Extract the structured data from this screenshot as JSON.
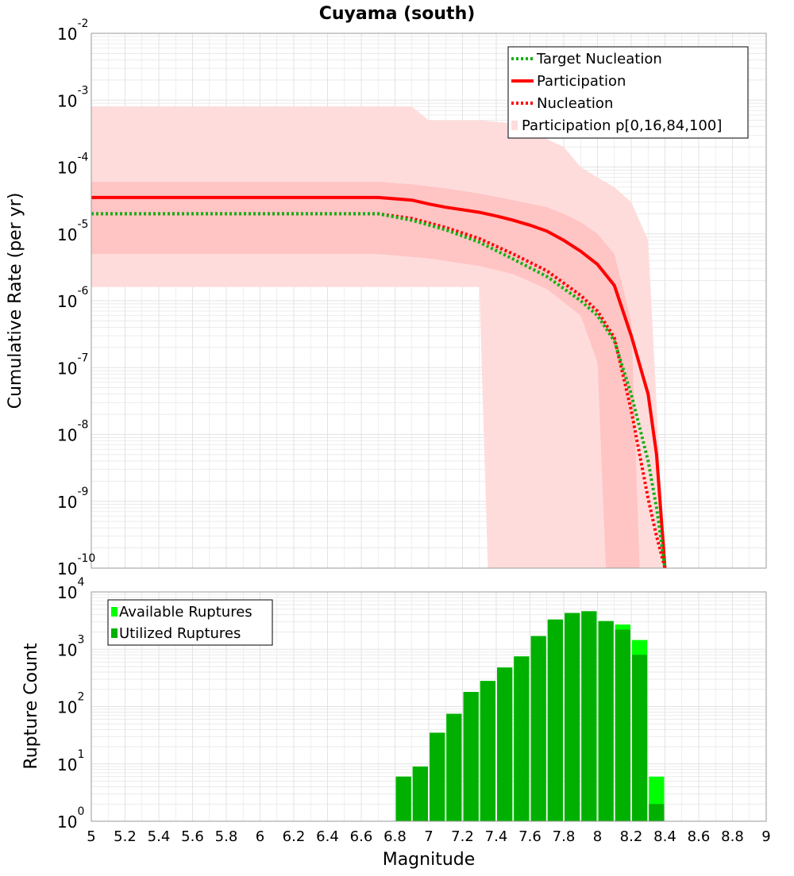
{
  "title": "Cuyama (south)",
  "colors": {
    "band_outer": "#ffdcdc",
    "band_inner": "#ffc4c4",
    "participation": "#ff0000",
    "nucleation": "#ff0000",
    "target": "#13b013",
    "available": "#00ff00",
    "utilized": "#00b000",
    "grid": "#e3e3e3"
  },
  "chart_data": [
    {
      "type": "line",
      "ylabel": "Cumulative Rate (per yr)",
      "yscale": "log",
      "xlim": [
        5,
        9
      ],
      "ylim_exp": [
        -10,
        -2
      ],
      "y_tick_exponents": [
        -10,
        -9,
        -8,
        -7,
        -6,
        -5,
        -4,
        -3,
        -2
      ],
      "grid": true,
      "legend": {
        "position": "top-right",
        "entries": [
          "Target Nucleation",
          "Participation",
          "Nucleation",
          "Participation p[0,16,84,100]"
        ]
      },
      "series": [
        {
          "name": "Target Nucleation",
          "style": "dotted",
          "x": [
            5.0,
            6.7,
            6.9,
            7.1,
            7.3,
            7.5,
            7.7,
            7.9,
            8.0,
            8.1,
            8.2,
            8.3,
            8.35,
            8.4
          ],
          "y": [
            2e-05,
            2e-05,
            1.6e-05,
            1.15e-05,
            7.5e-06,
            4.2e-06,
            2.3e-06,
            1e-06,
            6e-07,
            2.5e-07,
            4e-08,
            4e-09,
            8e-10,
            1e-10
          ]
        },
        {
          "name": "Participation",
          "style": "solid",
          "x": [
            5.0,
            6.7,
            6.9,
            7.0,
            7.1,
            7.2,
            7.3,
            7.4,
            7.5,
            7.6,
            7.7,
            7.8,
            7.9,
            8.0,
            8.1,
            8.2,
            8.3,
            8.35,
            8.4
          ],
          "y": [
            3.5e-05,
            3.5e-05,
            3.2e-05,
            2.8e-05,
            2.5e-05,
            2.3e-05,
            2.1e-05,
            1.85e-05,
            1.6e-05,
            1.35e-05,
            1.1e-05,
            8e-06,
            5.5e-06,
            3.5e-06,
            1.7e-06,
            3e-07,
            4e-08,
            5e-09,
            1e-10
          ]
        },
        {
          "name": "Nucleation",
          "style": "dotted",
          "x": [
            5.0,
            6.7,
            6.9,
            7.1,
            7.3,
            7.5,
            7.7,
            7.9,
            8.0,
            8.1,
            8.2,
            8.25,
            8.3,
            8.35,
            8.4
          ],
          "y": [
            2e-05,
            2e-05,
            1.7e-05,
            1.25e-05,
            8.5e-06,
            5e-06,
            2.8e-06,
            1.2e-06,
            7e-07,
            2.8e-07,
            2.3e-08,
            5e-09,
            1.1e-09,
            3e-10,
            1e-10
          ]
        },
        {
          "name": "Participation p[0,16,84,100]",
          "style": "band",
          "outer": {
            "upper_x": [
              5.0,
              6.9,
              7.0,
              7.3,
              7.5,
              7.8,
              7.9,
              8.0,
              8.1,
              8.2,
              8.3,
              8.4
            ],
            "upper_y": [
              0.0008,
              0.0008,
              0.0005,
              0.0005,
              0.00045,
              0.0002,
              0.0001,
              7e-05,
              5e-05,
              3e-05,
              8e-06,
              1e-10
            ],
            "lower_x": [
              5.0,
              7.3,
              7.35
            ],
            "lower_y": [
              1.6e-06,
              1.6e-06,
              1e-10
            ]
          },
          "inner": {
            "upper_x": [
              5.0,
              6.7,
              6.9,
              7.1,
              7.3,
              7.5,
              7.7,
              7.8,
              7.9,
              8.0,
              8.1,
              8.2,
              8.25
            ],
            "upper_y": [
              6e-05,
              6e-05,
              5.5e-05,
              4.8e-05,
              4e-05,
              3.2e-05,
              2.5e-05,
              2e-05,
              1.5e-05,
              1e-05,
              5e-06,
              5e-07,
              1e-10
            ],
            "lower_x": [
              5.0,
              6.7,
              7.0,
              7.3,
              7.5,
              7.7,
              7.9,
              8.0,
              8.05
            ],
            "lower_y": [
              5e-06,
              5e-06,
              4.3e-06,
              3.3e-06,
              2.5e-06,
              1.5e-06,
              6e-07,
              1.2e-07,
              1e-10
            ]
          }
        }
      ]
    },
    {
      "type": "bar",
      "ylabel": "Rupture Count",
      "xlabel": "Magnitude",
      "yscale": "log",
      "xlim": [
        5,
        9
      ],
      "ylim_exp": [
        0,
        4
      ],
      "y_tick_exponents": [
        0,
        1,
        2,
        3,
        4
      ],
      "x_ticks": [
        "5",
        "5.2",
        "5.4",
        "5.6",
        "5.8",
        "6",
        "6.2",
        "6.4",
        "6.6",
        "6.8",
        "7",
        "7.2",
        "7.4",
        "7.6",
        "7.8",
        "8",
        "8.2",
        "8.4",
        "8.6",
        "8.8",
        "9"
      ],
      "grid": true,
      "legend": {
        "position": "top-left",
        "entries": [
          "Available Ruptures",
          "Utilized Ruptures"
        ]
      },
      "bin_width": 0.1,
      "x": [
        6.85,
        6.95,
        7.05,
        7.15,
        7.25,
        7.35,
        7.45,
        7.55,
        7.65,
        7.75,
        7.85,
        7.95,
        8.05,
        8.15,
        8.25,
        8.35
      ],
      "series": [
        {
          "name": "Available Ruptures",
          "values": [
            6,
            9,
            35,
            75,
            180,
            280,
            480,
            750,
            1700,
            3300,
            4300,
            4600,
            3100,
            2700,
            1450,
            6
          ]
        },
        {
          "name": "Utilized Ruptures",
          "values": [
            6,
            9,
            35,
            75,
            180,
            280,
            480,
            750,
            1700,
            3300,
            4300,
            4600,
            3100,
            2200,
            800,
            2
          ]
        }
      ]
    }
  ]
}
